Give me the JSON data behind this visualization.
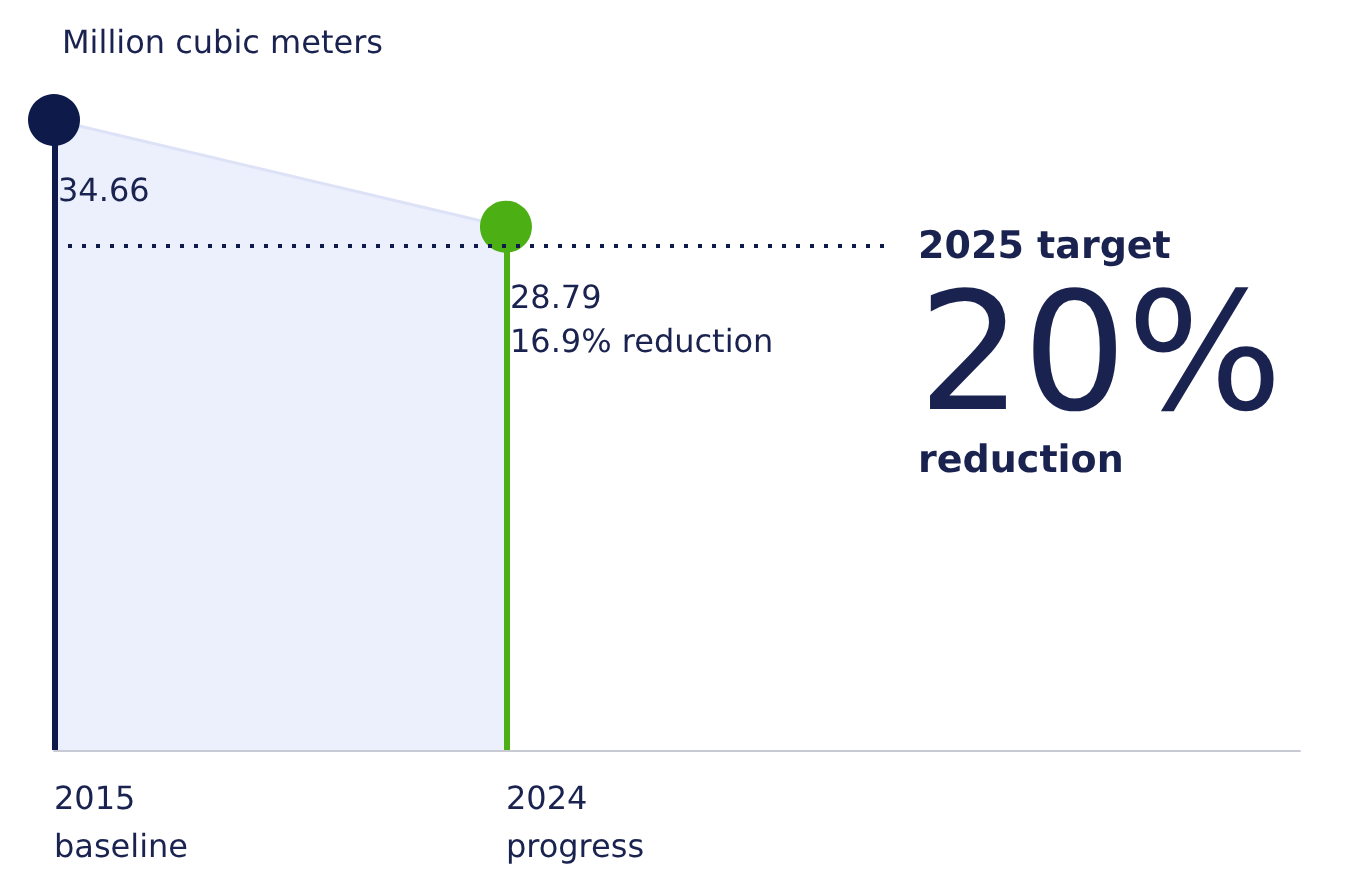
{
  "chart_data": {
    "type": "lollipop",
    "ylabel": "Million cubic meters",
    "categories": [
      "2015\nbaseline",
      "2024\nprogress"
    ],
    "series": [
      {
        "type": "area",
        "color": "#eceffc",
        "values": [
          34.66,
          28.79
        ]
      },
      {
        "marker": "circle",
        "colors": [
          "#0d1a4a",
          "#4caf14"
        ],
        "values": [
          34.66,
          28.79
        ],
        "value_labels": [
          "34.66",
          "28.79\n16.9% reduction"
        ]
      }
    ],
    "ref_lines": [
      {
        "axis": "y",
        "value": 27.73,
        "label": "2025 target\n20%\nreduction",
        "line_style": "dotted",
        "color": "#0d1a4a"
      }
    ]
  }
}
